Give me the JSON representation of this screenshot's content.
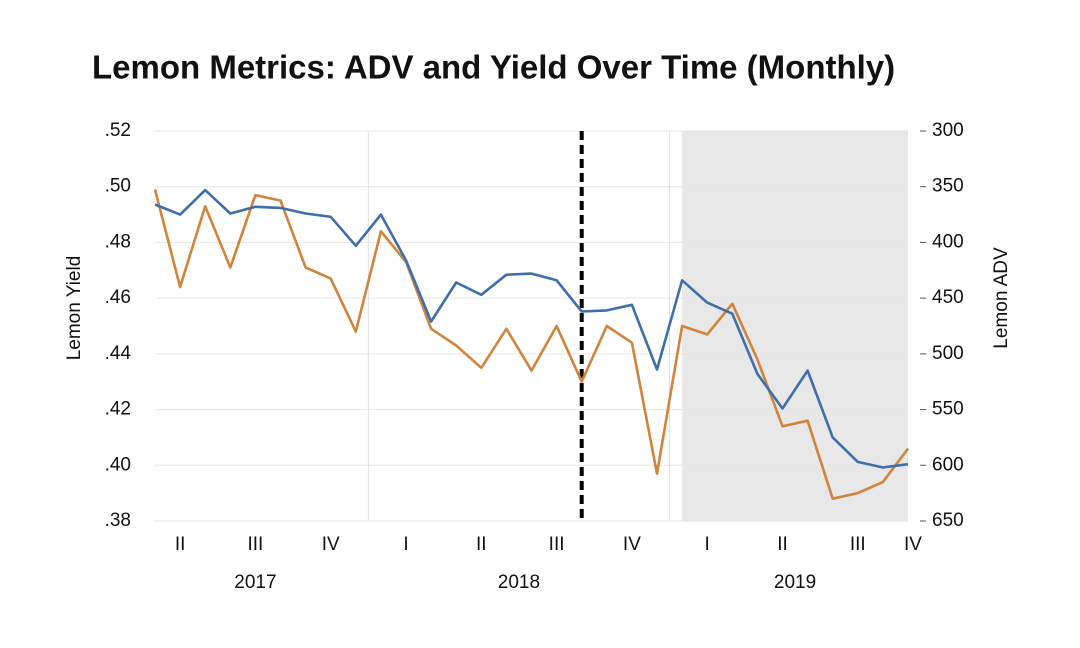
{
  "chart_data": {
    "type": "line",
    "title": "Lemon Metrics: ADV and Yield Over Time (Monthly)",
    "ylabel": "Lemon Yield",
    "y2label": "Lemon ADV",
    "quarter_labels": [
      "II",
      "III",
      "IV",
      "I",
      "II",
      "III",
      "IV",
      "I",
      "II",
      "III",
      "IV"
    ],
    "years": [
      "2017",
      "2018",
      "2019"
    ],
    "ylim": [
      0.38,
      0.52
    ],
    "yticks": [
      {
        "value": 0.38,
        "label": ".38"
      },
      {
        "value": 0.4,
        "label": ".40"
      },
      {
        "value": 0.42,
        "label": ".42"
      },
      {
        "value": 0.44,
        "label": ".44"
      },
      {
        "value": 0.46,
        "label": ".46"
      },
      {
        "value": 0.48,
        "label": ".48"
      },
      {
        "value": 0.5,
        "label": ".50"
      },
      {
        "value": 0.52,
        "label": ".52"
      }
    ],
    "y2lim": [
      300,
      650
    ],
    "y2_reversed": true,
    "y2ticks": [
      300,
      350,
      400,
      450,
      500,
      550,
      600,
      650
    ],
    "grid": true,
    "vline_index": 17,
    "shade_range": [
      21,
      30
    ],
    "series": [
      {
        "color": "#d0843c",
        "values": [
          0.499,
          0.464,
          0.493,
          0.471,
          0.497,
          0.495,
          0.471,
          0.467,
          0.448,
          0.484,
          0.473,
          0.449,
          0.443,
          0.435,
          0.449,
          0.434,
          0.45,
          0.43,
          0.45,
          0.444,
          0.397,
          0.45,
          0.447,
          0.458,
          0.438,
          0.414,
          0.416,
          0.388,
          0.39,
          0.394,
          0.406
        ]
      },
      {
        "color": "#3f6eaa",
        "axis": "y2",
        "values": [
          366,
          375,
          353,
          374,
          368,
          369,
          374,
          377,
          403,
          375,
          416,
          471,
          436,
          447,
          429,
          428,
          434,
          462,
          461,
          456,
          514,
          434,
          454,
          464,
          518,
          549,
          515,
          575,
          597,
          602,
          599
        ]
      }
    ]
  }
}
